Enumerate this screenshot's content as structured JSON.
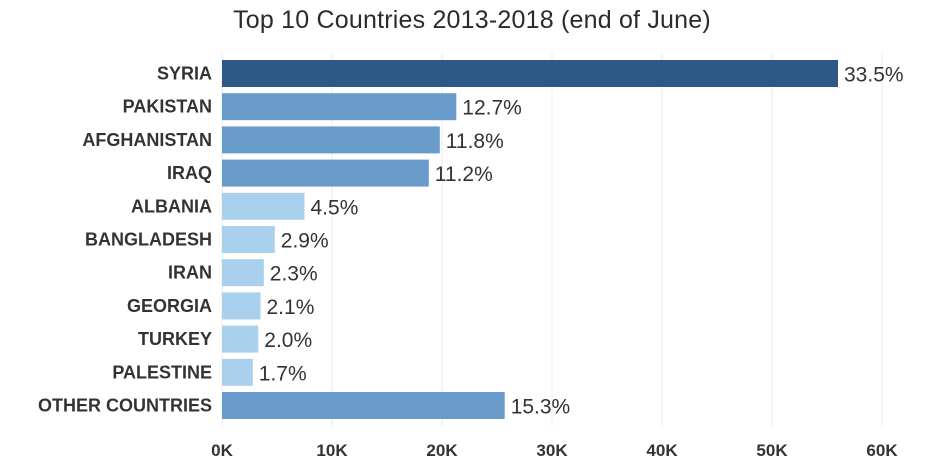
{
  "chart_data": {
    "type": "bar",
    "orientation": "horizontal",
    "title": "Top 10 Countries 2013-2018 (end of June)",
    "xlabel": "",
    "ylabel": "",
    "categories": [
      "SYRIA",
      "PAKISTAN",
      "AFGHANISTAN",
      "IRAQ",
      "ALBANIA",
      "BANGLADESH",
      "IRAN",
      "GEORGIA",
      "TURKEY",
      "PALESTINE",
      "OTHER COUNTRIES"
    ],
    "values": [
      56000,
      21300,
      19800,
      18800,
      7500,
      4800,
      3800,
      3500,
      3300,
      2800,
      25700
    ],
    "data_labels": [
      "33.5%",
      "12.7%",
      "11.8%",
      "11.2%",
      "4.5%",
      "2.9%",
      "2.3%",
      "2.1%",
      "2.0%",
      "1.7%",
      "15.3%"
    ],
    "bar_colors": [
      "#2d5986",
      "#6a9ccb",
      "#6a9ccb",
      "#6a9ccb",
      "#a9d0ec",
      "#a9d0ec",
      "#a9d0ec",
      "#a9d0ec",
      "#a9d0ec",
      "#a9d0ec",
      "#6a9ccb"
    ],
    "xlim": [
      0,
      65000
    ],
    "xticks": [
      0,
      10000,
      20000,
      30000,
      40000,
      50000,
      60000
    ],
    "xtick_labels": [
      "0K",
      "10K",
      "20K",
      "30K",
      "40K",
      "50K",
      "60K"
    ],
    "grid": "vertical",
    "legend": "none"
  }
}
